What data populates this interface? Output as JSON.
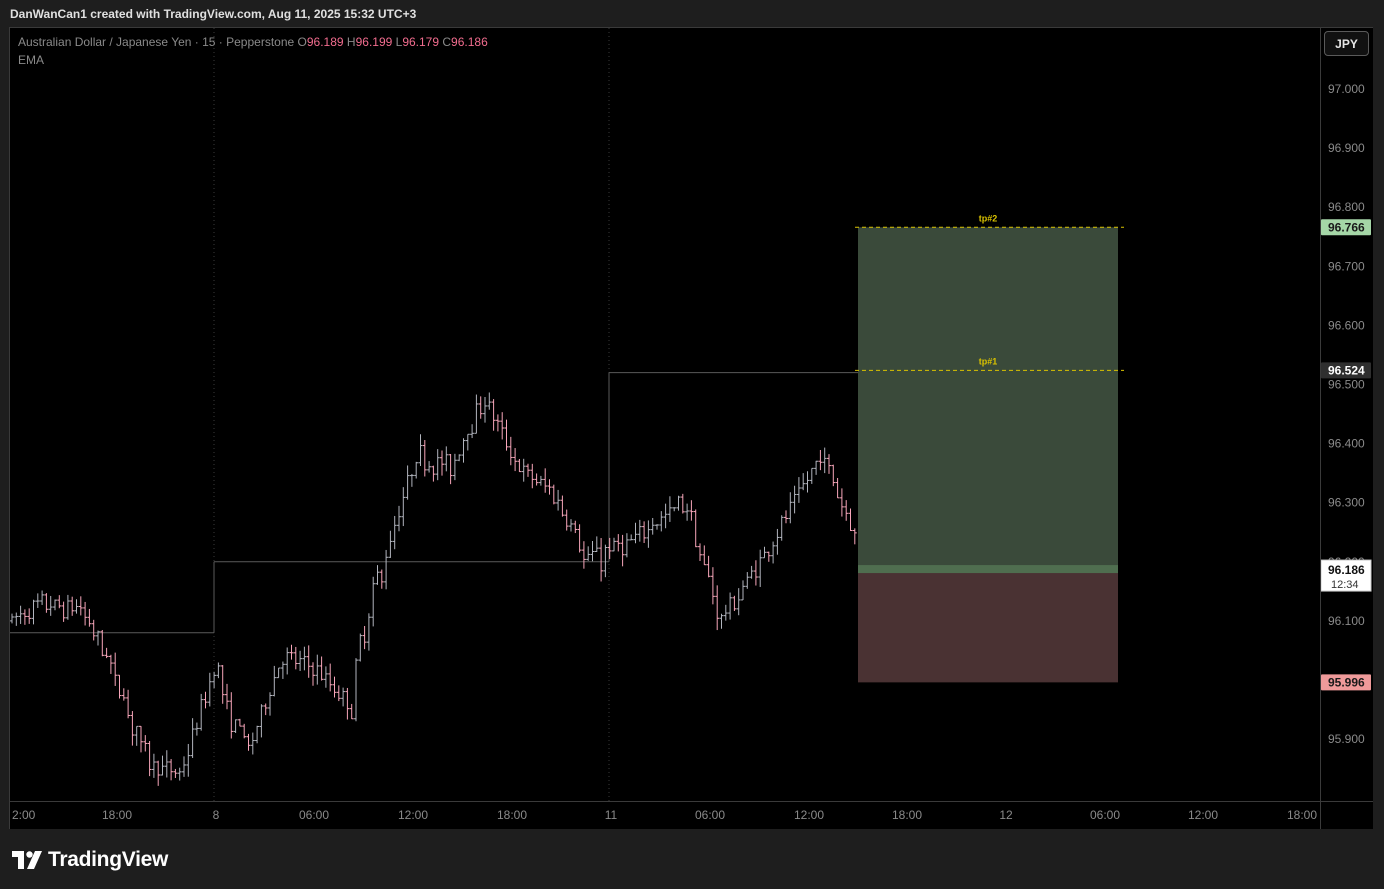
{
  "header": {
    "caption": "DanWanCan1 created with TradingView.com, Aug 11, 2025 15:32 UTC+3"
  },
  "legend": {
    "symbol_line": "Australian Dollar / Japanese Yen · 15 · Pepperstone",
    "open_label": "O",
    "open_value": "96.189",
    "high_label": "H",
    "high_value": "96.199",
    "low_label": "L",
    "low_value": "96.179",
    "close_label": "C",
    "close_value": "96.186",
    "indicator": "EMA"
  },
  "currency_button": "JPY",
  "brand": {
    "name": "TradingView"
  },
  "colors": {
    "background": "#000000",
    "frame": "#1e1e1e",
    "bar_up": "#b2b5be",
    "bar_down": "#f7a6ba",
    "profit_zone": "#3a4a3a",
    "loss_zone": "#4a3233",
    "target_line": "#d9c200",
    "target_badge": "#a5d6a7",
    "stop_badge": "#ef9a9a",
    "legend_value": "#f26d8f"
  },
  "chart_data": {
    "type": "ohlc",
    "symbol": "Australian Dollar / Japanese Yen",
    "interval": "15",
    "broker": "Pepperstone",
    "y_axis": {
      "ticks": [
        "97.000",
        "96.900",
        "96.800",
        "96.700",
        "96.600",
        "96.500",
        "96.400",
        "96.300",
        "96.200",
        "96.100",
        "95.900"
      ],
      "range": [
        95.83,
        97.05
      ]
    },
    "x_axis": {
      "ticks": [
        "2:00",
        "18:00",
        "8",
        "06:00",
        "12:00",
        "18:00",
        "11",
        "06:00",
        "12:00",
        "18:00",
        "12",
        "06:00",
        "12:00",
        "18:00"
      ]
    },
    "price_path": [
      [
        96.1,
        96.14
      ],
      [
        96.13,
        96.08
      ],
      [
        96.12,
        96.18
      ],
      [
        96.02,
        95.9
      ],
      [
        95.86,
        95.88
      ],
      [
        95.84,
        95.88
      ],
      [
        96.02,
        95.86
      ],
      [
        95.88,
        95.86
      ],
      [
        96.04,
        96.06
      ],
      [
        96.02,
        96.02
      ],
      [
        95.96,
        96.18
      ],
      [
        96.2,
        96.22
      ],
      [
        96.38,
        96.44
      ],
      [
        96.36,
        96.3
      ],
      [
        96.48,
        96.5
      ],
      [
        96.36,
        96.34
      ],
      [
        96.32,
        96.24
      ],
      [
        96.2,
        96.36
      ],
      [
        96.22,
        96.24
      ],
      [
        96.26,
        96.2
      ],
      [
        96.3,
        96.26
      ],
      [
        96.1,
        96.06
      ],
      [
        96.18,
        96.2
      ],
      [
        96.28,
        96.32
      ],
      [
        96.38,
        96.32
      ],
      [
        96.24,
        96.18
      ]
    ],
    "previous_session_levels": [
      {
        "from": "2:00",
        "to": "8",
        "price": 96.08
      },
      {
        "from": "8",
        "to": "11",
        "price": 96.2
      },
      {
        "from": "11",
        "to": "12",
        "price": 96.52
      }
    ],
    "position": {
      "side": "long",
      "entry": 96.186,
      "stop": 95.996,
      "targets": [
        {
          "label": "tp#1",
          "price": 96.524
        },
        {
          "label": "tp#2",
          "price": 96.766
        }
      ]
    },
    "last_price": {
      "value": "96.186",
      "countdown": "12:34"
    },
    "price_badges": {
      "tp2": "96.766",
      "tp1": "96.524",
      "stop": "95.996"
    }
  }
}
